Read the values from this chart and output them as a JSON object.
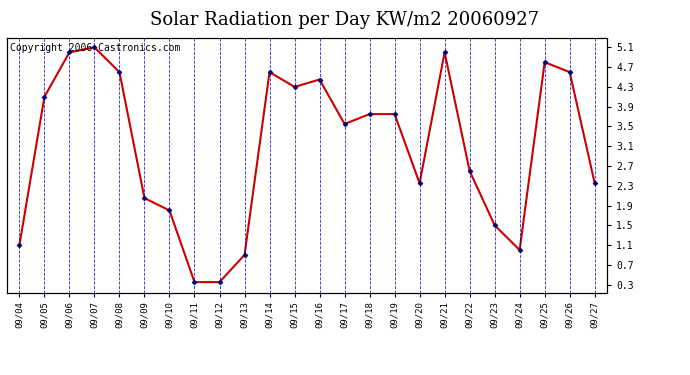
{
  "title": "Solar Radiation per Day KW/m2 20060927",
  "copyright": "Copyright 2006 Castronics.com",
  "x_labels": [
    "09/04",
    "09/05",
    "09/06",
    "09/07",
    "09/08",
    "09/09",
    "09/10",
    "09/11",
    "09/12",
    "09/13",
    "09/14",
    "09/15",
    "09/16",
    "09/17",
    "09/18",
    "09/19",
    "09/20",
    "09/21",
    "09/22",
    "09/23",
    "09/24",
    "09/25",
    "09/26",
    "09/27"
  ],
  "y_values": [
    1.1,
    4.1,
    5.0,
    5.1,
    4.6,
    2.05,
    1.8,
    0.35,
    0.35,
    0.9,
    4.6,
    4.3,
    4.45,
    3.55,
    3.75,
    3.75,
    2.35,
    5.0,
    2.6,
    1.5,
    1.0,
    4.8,
    4.6,
    2.35
  ],
  "y_ticks": [
    0.3,
    0.7,
    1.1,
    1.5,
    1.9,
    2.3,
    2.7,
    3.1,
    3.5,
    3.9,
    4.3,
    4.7,
    5.1
  ],
  "ylim": [
    0.14,
    5.3
  ],
  "line_color": "#CC0000",
  "marker_color": "#000066",
  "bg_color": "#FFFFFF",
  "plot_bg_color": "#FFFFFF",
  "grid_color": "#0000CC",
  "title_fontsize": 13,
  "copyright_fontsize": 7
}
